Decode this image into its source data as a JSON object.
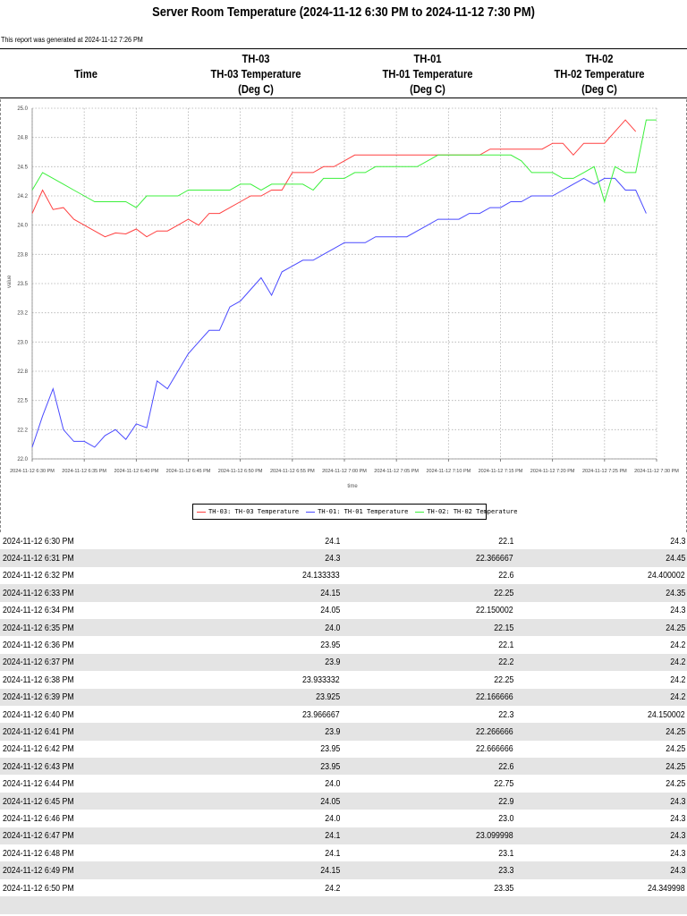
{
  "report": {
    "title": "Server Room Temperature (2024-11-12 6:30 PM to 2024-11-12 7:30 PM)",
    "generated": "This report was generated at 2024-11-12 7:26 PM"
  },
  "columns": {
    "time": "Time",
    "c1": [
      "TH-03",
      "TH-03 Temperature",
      "(Deg C)"
    ],
    "c2": [
      "TH-01",
      "TH-01 Temperature",
      "(Deg C)"
    ],
    "c3": [
      "TH-02",
      "TH-02 Temperature",
      "(Deg C)"
    ]
  },
  "colors": {
    "TH-03": "#ff4040",
    "TH-01": "#4a4aff",
    "TH-02": "#3cf03c",
    "grid": "#b0b0b0"
  },
  "chart_data": {
    "type": "line",
    "xlabel": "time",
    "ylabel": "value",
    "ylim": [
      22.0,
      25.0
    ],
    "yticks": [
      "22.0",
      "22.2",
      "22.5",
      "22.8",
      "23.0",
      "23.2",
      "23.5",
      "23.8",
      "24.0",
      "24.2",
      "24.5",
      "24.8",
      "25.0"
    ],
    "ytick_values": [
      22.0,
      22.25,
      22.5,
      22.75,
      23.0,
      23.25,
      23.5,
      23.75,
      24.0,
      24.25,
      24.5,
      24.75,
      25.0
    ],
    "xlim_minutes": [
      0,
      60
    ],
    "xticks": [
      "2024-11-12 6:30 PM",
      "2024-11-12 6:35 PM",
      "2024-11-12 6:40 PM",
      "2024-11-12 6:45 PM",
      "2024-11-12 6:50 PM",
      "2024-11-12 6:55 PM",
      "2024-11-12 7:00 PM",
      "2024-11-12 7:05 PM",
      "2024-11-12 7:10 PM",
      "2024-11-12 7:15 PM",
      "2024-11-12 7:20 PM",
      "2024-11-12 7:25 PM",
      "2024-11-12 7:30 PM"
    ],
    "grid": true,
    "legend_position": "bottom",
    "series": [
      {
        "name": "TH-03: TH-03 Temperature",
        "key": "TH-03",
        "values": [
          24.1,
          24.3,
          24.133333,
          24.15,
          24.05,
          24.0,
          23.95,
          23.9,
          23.933332,
          23.925,
          23.966667,
          23.9,
          23.95,
          23.95,
          24.0,
          24.05,
          24.0,
          24.1,
          24.1,
          24.15,
          24.2,
          24.25,
          24.25,
          24.3,
          24.3,
          24.45,
          24.45,
          24.45,
          24.5,
          24.5,
          24.55,
          24.6,
          24.6,
          24.6,
          24.6,
          24.6,
          24.6,
          24.6,
          24.6,
          24.6,
          24.6,
          24.6,
          24.6,
          24.6,
          24.65,
          24.65,
          24.65,
          24.65,
          24.65,
          24.65,
          24.7,
          24.7,
          24.6,
          24.7,
          24.7,
          24.7,
          24.8,
          24.9,
          24.8
        ]
      },
      {
        "name": "TH-01: TH-01 Temperature",
        "key": "TH-01",
        "values": [
          22.1,
          22.366667,
          22.6,
          22.25,
          22.150002,
          22.15,
          22.1,
          22.2,
          22.25,
          22.166666,
          22.3,
          22.266666,
          22.666666,
          22.6,
          22.75,
          22.9,
          23.0,
          23.099998,
          23.1,
          23.3,
          23.35,
          23.45,
          23.55,
          23.4,
          23.6,
          23.65,
          23.7,
          23.7,
          23.75,
          23.8,
          23.85,
          23.85,
          23.85,
          23.9,
          23.9,
          23.9,
          23.9,
          23.95,
          24.0,
          24.05,
          24.05,
          24.05,
          24.1,
          24.1,
          24.15,
          24.15,
          24.2,
          24.2,
          24.25,
          24.25,
          24.25,
          24.3,
          24.35,
          24.4,
          24.35,
          24.4,
          24.4,
          24.3,
          24.3,
          24.1
        ]
      },
      {
        "name": "TH-02: TH-02 Temperature",
        "key": "TH-02",
        "values": [
          24.3,
          24.45,
          24.400002,
          24.35,
          24.3,
          24.25,
          24.2,
          24.2,
          24.2,
          24.2,
          24.150002,
          24.25,
          24.25,
          24.25,
          24.25,
          24.3,
          24.3,
          24.3,
          24.3,
          24.3,
          24.349998,
          24.35,
          24.3,
          24.35,
          24.35,
          24.35,
          24.35,
          24.3,
          24.4,
          24.4,
          24.4,
          24.45,
          24.45,
          24.5,
          24.5,
          24.5,
          24.5,
          24.5,
          24.55,
          24.6,
          24.6,
          24.6,
          24.6,
          24.6,
          24.6,
          24.6,
          24.6,
          24.55,
          24.45,
          24.45,
          24.45,
          24.4,
          24.4,
          24.45,
          24.5,
          24.2,
          24.5,
          24.45,
          24.45,
          24.9,
          24.9
        ]
      }
    ]
  },
  "rows": [
    {
      "time": "2024-11-12 6:30 PM",
      "v1": "24.1",
      "v2": "22.1",
      "v3": "24.3"
    },
    {
      "time": "2024-11-12 6:31 PM",
      "v1": "24.3",
      "v2": "22.366667",
      "v3": "24.45"
    },
    {
      "time": "2024-11-12 6:32 PM",
      "v1": "24.133333",
      "v2": "22.6",
      "v3": "24.400002"
    },
    {
      "time": "2024-11-12 6:33 PM",
      "v1": "24.15",
      "v2": "22.25",
      "v3": "24.35"
    },
    {
      "time": "2024-11-12 6:34 PM",
      "v1": "24.05",
      "v2": "22.150002",
      "v3": "24.3"
    },
    {
      "time": "2024-11-12 6:35 PM",
      "v1": "24.0",
      "v2": "22.15",
      "v3": "24.25"
    },
    {
      "time": "2024-11-12 6:36 PM",
      "v1": "23.95",
      "v2": "22.1",
      "v3": "24.2"
    },
    {
      "time": "2024-11-12 6:37 PM",
      "v1": "23.9",
      "v2": "22.2",
      "v3": "24.2"
    },
    {
      "time": "2024-11-12 6:38 PM",
      "v1": "23.933332",
      "v2": "22.25",
      "v3": "24.2"
    },
    {
      "time": "2024-11-12 6:39 PM",
      "v1": "23.925",
      "v2": "22.166666",
      "v3": "24.2"
    },
    {
      "time": "2024-11-12 6:40 PM",
      "v1": "23.966667",
      "v2": "22.3",
      "v3": "24.150002"
    },
    {
      "time": "2024-11-12 6:41 PM",
      "v1": "23.9",
      "v2": "22.266666",
      "v3": "24.25"
    },
    {
      "time": "2024-11-12 6:42 PM",
      "v1": "23.95",
      "v2": "22.666666",
      "v3": "24.25"
    },
    {
      "time": "2024-11-12 6:43 PM",
      "v1": "23.95",
      "v2": "22.6",
      "v3": "24.25"
    },
    {
      "time": "2024-11-12 6:44 PM",
      "v1": "24.0",
      "v2": "22.75",
      "v3": "24.25"
    },
    {
      "time": "2024-11-12 6:45 PM",
      "v1": "24.05",
      "v2": "22.9",
      "v3": "24.3"
    },
    {
      "time": "2024-11-12 6:46 PM",
      "v1": "24.0",
      "v2": "23.0",
      "v3": "24.3"
    },
    {
      "time": "2024-11-12 6:47 PM",
      "v1": "24.1",
      "v2": "23.099998",
      "v3": "24.3"
    },
    {
      "time": "2024-11-12 6:48 PM",
      "v1": "24.1",
      "v2": "23.1",
      "v3": "24.3"
    },
    {
      "time": "2024-11-12 6:49 PM",
      "v1": "24.15",
      "v2": "23.3",
      "v3": "24.3"
    },
    {
      "time": "2024-11-12 6:50 PM",
      "v1": "24.2",
      "v2": "23.35",
      "v3": "24.349998"
    }
  ]
}
